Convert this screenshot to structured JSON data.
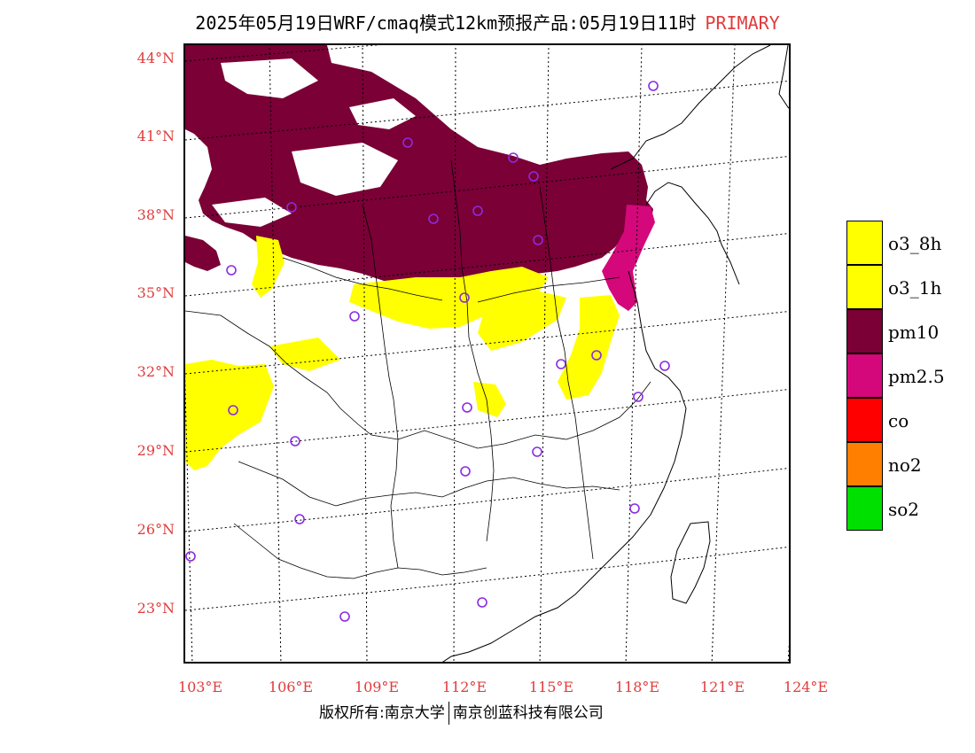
{
  "title": {
    "main": "2025年05月19日WRF/cmaq模式12km预报产品:05月19日11时",
    "tag": "PRIMARY",
    "tag_color": "#e03c3c"
  },
  "axes": {
    "lat_labels": [
      "44°N",
      "41°N",
      "38°N",
      "35°N",
      "32°N",
      "29°N",
      "26°N",
      "23°N"
    ],
    "lon_labels": [
      "103°E",
      "106°E",
      "109°E",
      "112°E",
      "115°E",
      "118°E",
      "121°E",
      "124°E"
    ],
    "label_color": "#e03c3c"
  },
  "legend": [
    {
      "label": "o3_8h",
      "color": "#ffff00"
    },
    {
      "label": "o3_1h",
      "color": "#ffff00"
    },
    {
      "label": "pm10",
      "color": "#7a0035"
    },
    {
      "label": "pm2.5",
      "color": "#d4087a"
    },
    {
      "label": "co",
      "color": "#ff0000"
    },
    {
      "label": "no2",
      "color": "#ff7f00"
    },
    {
      "label": "so2",
      "color": "#00e000"
    }
  ],
  "footer": {
    "left": "版权所有:南京大学",
    "right": "南京创蓝科技有限公司"
  },
  "colors": {
    "pm10": "#7a0035",
    "pm25": "#d4087a",
    "o3": "#ffff00",
    "station": "#8a2be2"
  }
}
